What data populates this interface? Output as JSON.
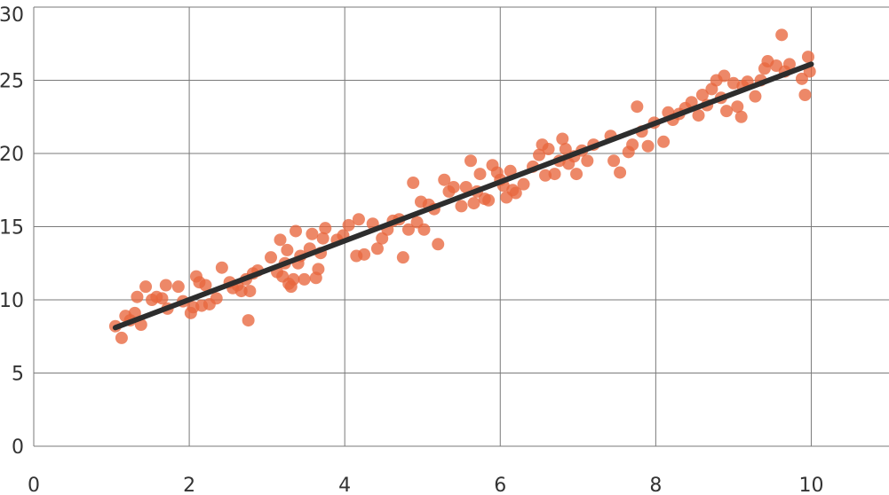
{
  "chart_data": {
    "type": "scatter",
    "title": "",
    "xlabel": "",
    "ylabel": "",
    "xlim": [
      0,
      11
    ],
    "ylim": [
      0,
      30
    ],
    "x_ticks": [
      0,
      2,
      4,
      6,
      8,
      10
    ],
    "y_ticks": [
      0,
      5,
      10,
      15,
      20,
      25,
      30
    ],
    "grid": true,
    "legend": "none",
    "point_color": "#e8663d",
    "line_color": "#2d2d2d",
    "series": [
      {
        "type": "scatter",
        "points": [
          [
            1.05,
            8.2
          ],
          [
            1.13,
            7.4
          ],
          [
            1.18,
            8.9
          ],
          [
            1.24,
            8.6
          ],
          [
            1.3,
            9.1
          ],
          [
            1.33,
            10.2
          ],
          [
            1.38,
            8.3
          ],
          [
            1.44,
            10.9
          ],
          [
            1.52,
            10.0
          ],
          [
            1.58,
            10.2
          ],
          [
            1.65,
            10.1
          ],
          [
            1.7,
            11.0
          ],
          [
            1.72,
            9.4
          ],
          [
            1.86,
            10.9
          ],
          [
            1.92,
            9.9
          ],
          [
            2.02,
            9.1
          ],
          [
            2.05,
            9.5
          ],
          [
            2.09,
            11.6
          ],
          [
            2.13,
            11.2
          ],
          [
            2.16,
            9.6
          ],
          [
            2.21,
            11.0
          ],
          [
            2.26,
            9.7
          ],
          [
            2.35,
            10.1
          ],
          [
            2.42,
            12.2
          ],
          [
            2.52,
            11.2
          ],
          [
            2.56,
            10.8
          ],
          [
            2.62,
            11.0
          ],
          [
            2.67,
            10.6
          ],
          [
            2.73,
            11.4
          ],
          [
            2.76,
            8.6
          ],
          [
            2.78,
            10.6
          ],
          [
            2.82,
            11.8
          ],
          [
            2.88,
            12.0
          ],
          [
            3.05,
            12.9
          ],
          [
            3.13,
            11.9
          ],
          [
            3.17,
            14.1
          ],
          [
            3.2,
            11.6
          ],
          [
            3.23,
            12.5
          ],
          [
            3.26,
            13.4
          ],
          [
            3.28,
            11.1
          ],
          [
            3.31,
            10.9
          ],
          [
            3.34,
            11.4
          ],
          [
            3.37,
            14.7
          ],
          [
            3.4,
            12.5
          ],
          [
            3.43,
            13.0
          ],
          [
            3.48,
            11.4
          ],
          [
            3.55,
            13.5
          ],
          [
            3.58,
            14.5
          ],
          [
            3.63,
            11.5
          ],
          [
            3.66,
            12.1
          ],
          [
            3.69,
            13.2
          ],
          [
            3.72,
            14.2
          ],
          [
            3.75,
            14.9
          ],
          [
            3.9,
            14.1
          ],
          [
            3.98,
            14.4
          ],
          [
            4.05,
            15.1
          ],
          [
            4.15,
            13.0
          ],
          [
            4.18,
            15.5
          ],
          [
            4.25,
            13.1
          ],
          [
            4.36,
            15.2
          ],
          [
            4.42,
            13.5
          ],
          [
            4.48,
            14.2
          ],
          [
            4.55,
            14.8
          ],
          [
            4.62,
            15.4
          ],
          [
            4.7,
            15.5
          ],
          [
            4.75,
            12.9
          ],
          [
            4.82,
            14.8
          ],
          [
            4.88,
            18.0
          ],
          [
            4.93,
            15.3
          ],
          [
            4.98,
            16.7
          ],
          [
            5.02,
            14.8
          ],
          [
            5.08,
            16.5
          ],
          [
            5.15,
            16.2
          ],
          [
            5.2,
            13.8
          ],
          [
            5.28,
            18.2
          ],
          [
            5.34,
            17.4
          ],
          [
            5.4,
            17.7
          ],
          [
            5.5,
            16.4
          ],
          [
            5.56,
            17.7
          ],
          [
            5.62,
            19.5
          ],
          [
            5.66,
            16.6
          ],
          [
            5.7,
            17.4
          ],
          [
            5.74,
            18.6
          ],
          [
            5.8,
            16.9
          ],
          [
            5.85,
            16.8
          ],
          [
            5.9,
            19.2
          ],
          [
            5.96,
            18.7
          ],
          [
            6.0,
            18.2
          ],
          [
            6.04,
            17.8
          ],
          [
            6.08,
            17.0
          ],
          [
            6.13,
            18.8
          ],
          [
            6.16,
            17.5
          ],
          [
            6.2,
            17.3
          ],
          [
            6.3,
            17.9
          ],
          [
            6.42,
            19.1
          ],
          [
            6.5,
            19.9
          ],
          [
            6.54,
            20.6
          ],
          [
            6.58,
            18.5
          ],
          [
            6.62,
            20.3
          ],
          [
            6.7,
            18.6
          ],
          [
            6.76,
            19.5
          ],
          [
            6.8,
            21.0
          ],
          [
            6.84,
            20.3
          ],
          [
            6.88,
            19.3
          ],
          [
            6.95,
            19.8
          ],
          [
            6.98,
            18.6
          ],
          [
            7.05,
            20.2
          ],
          [
            7.12,
            19.5
          ],
          [
            7.2,
            20.6
          ],
          [
            7.42,
            21.2
          ],
          [
            7.46,
            19.5
          ],
          [
            7.54,
            18.7
          ],
          [
            7.65,
            20.1
          ],
          [
            7.7,
            20.6
          ],
          [
            7.76,
            23.2
          ],
          [
            7.82,
            21.5
          ],
          [
            7.9,
            20.5
          ],
          [
            7.98,
            22.1
          ],
          [
            8.1,
            20.8
          ],
          [
            8.16,
            22.8
          ],
          [
            8.22,
            22.3
          ],
          [
            8.3,
            22.7
          ],
          [
            8.38,
            23.1
          ],
          [
            8.46,
            23.5
          ],
          [
            8.55,
            22.6
          ],
          [
            8.6,
            24.0
          ],
          [
            8.66,
            23.3
          ],
          [
            8.72,
            24.4
          ],
          [
            8.78,
            25.0
          ],
          [
            8.84,
            23.8
          ],
          [
            8.88,
            25.3
          ],
          [
            8.91,
            22.9
          ],
          [
            9.0,
            24.8
          ],
          [
            9.05,
            23.2
          ],
          [
            9.1,
            22.5
          ],
          [
            9.12,
            24.6
          ],
          [
            9.18,
            24.9
          ],
          [
            9.28,
            23.9
          ],
          [
            9.35,
            25.0
          ],
          [
            9.4,
            25.8
          ],
          [
            9.44,
            26.3
          ],
          [
            9.55,
            26.0
          ],
          [
            9.62,
            28.1
          ],
          [
            9.66,
            25.6
          ],
          [
            9.72,
            26.1
          ],
          [
            9.88,
            25.1
          ],
          [
            9.92,
            24.0
          ],
          [
            9.96,
            26.6
          ],
          [
            9.98,
            25.6
          ]
        ]
      },
      {
        "type": "line",
        "points": [
          [
            1.05,
            8.1
          ],
          [
            10.0,
            26.1
          ]
        ]
      }
    ]
  }
}
